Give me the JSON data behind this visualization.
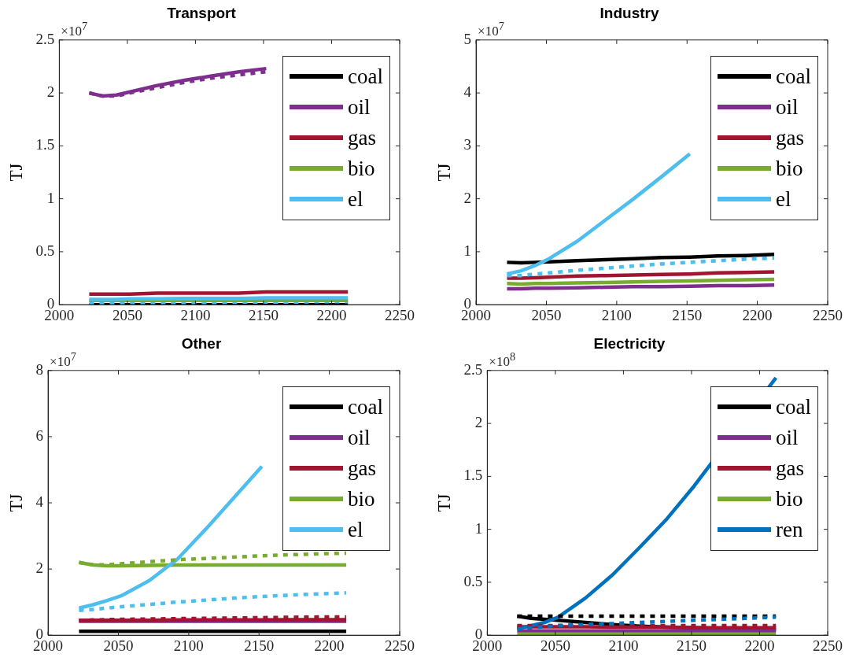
{
  "chart_data": [
    {
      "type": "line",
      "title": "Transport",
      "ylabel": "TJ",
      "annotations": [
        "×10$^{7}$"
      ],
      "legend": "top right",
      "grid": false,
      "marker": "none",
      "x": [
        2022,
        2032,
        2042,
        2052,
        2072,
        2092,
        2112,
        2132,
        2152,
        2172,
        2192,
        2212
      ],
      "xlim": [
        2000,
        2250
      ],
      "xticks": [
        2000,
        2050,
        2100,
        2150,
        2200,
        2250
      ],
      "ylim": [
        0,
        2.5
      ],
      "yticks": [
        0,
        0.5,
        1,
        1.5,
        2,
        2.5
      ],
      "series": [
        {
          "name": "coal",
          "color": "#000000",
          "line_style": "solid",
          "values": [
            0.0,
            0.0,
            0.0,
            0.0,
            0.0,
            0.0,
            0.0,
            0.0,
            0.0,
            0.0,
            0.0,
            0.0
          ]
        },
        {
          "name": "oil",
          "color": "#7e2f8e",
          "line_style": "solid",
          "values": [
            2.0,
            1.97,
            1.98,
            2.01,
            2.07,
            2.12,
            2.16,
            2.2,
            2.23,
            null,
            null,
            null
          ]
        },
        {
          "name": "gas",
          "color": "#a2142f",
          "line_style": "solid",
          "values": [
            0.1,
            0.1,
            0.1,
            0.1,
            0.11,
            0.11,
            0.11,
            0.11,
            0.12,
            0.12,
            0.12,
            0.12
          ]
        },
        {
          "color": "#4dbeee",
          "line_style": "dotted",
          "values": [
            0.015,
            0.015,
            0.015,
            0.02,
            0.02,
            0.02,
            0.02,
            0.025,
            0.025,
            0.025,
            0.03,
            0.03
          ]
        },
        {
          "name": "bio",
          "color": "#77ac30",
          "line_style": "solid",
          "values": [
            0.04,
            0.04,
            0.04,
            0.04,
            0.04,
            0.04,
            0.04,
            0.04,
            0.04,
            0.04,
            0.04,
            0.04
          ]
        },
        {
          "name": "el",
          "color": "#4dbeee",
          "line_style": "solid",
          "values": [
            0.05,
            0.05,
            0.05,
            0.055,
            0.055,
            0.06,
            0.06,
            0.06,
            0.065,
            0.065,
            0.065,
            0.065
          ]
        },
        {
          "color": "#7e2f8e",
          "line_style": "dotted",
          "values": [
            2.0,
            1.97,
            1.97,
            2.0,
            2.05,
            2.1,
            2.14,
            2.17,
            2.2,
            null,
            null,
            null
          ]
        }
      ]
    },
    {
      "type": "line",
      "title": "Industry",
      "ylabel": "TJ",
      "annotations": [
        "×10$^{7}$"
      ],
      "legend": "top right",
      "grid": false,
      "marker": "none",
      "x": [
        2022,
        2032,
        2042,
        2052,
        2072,
        2092,
        2112,
        2132,
        2152,
        2172,
        2192,
        2212
      ],
      "xlim": [
        2000,
        2250
      ],
      "xticks": [
        2000,
        2050,
        2100,
        2150,
        2200,
        2250
      ],
      "ylim": [
        0,
        5
      ],
      "yticks": [
        0,
        1,
        2,
        3,
        4,
        5
      ],
      "series": [
        {
          "name": "coal",
          "color": "#000000",
          "line_style": "solid",
          "values": [
            0.8,
            0.79,
            0.8,
            0.81,
            0.83,
            0.85,
            0.87,
            0.89,
            0.9,
            0.92,
            0.93,
            0.95
          ]
        },
        {
          "name": "oil",
          "color": "#7e2f8e",
          "line_style": "solid",
          "values": [
            0.3,
            0.3,
            0.31,
            0.31,
            0.32,
            0.33,
            0.34,
            0.34,
            0.35,
            0.36,
            0.36,
            0.37
          ]
        },
        {
          "name": "gas",
          "color": "#a2142f",
          "line_style": "solid",
          "values": [
            0.5,
            0.5,
            0.51,
            0.52,
            0.54,
            0.55,
            0.56,
            0.57,
            0.58,
            0.6,
            0.61,
            0.62
          ]
        },
        {
          "name": "bio",
          "color": "#77ac30",
          "line_style": "solid",
          "values": [
            0.4,
            0.39,
            0.4,
            0.4,
            0.41,
            0.42,
            0.43,
            0.44,
            0.45,
            0.46,
            0.47,
            0.48
          ]
        },
        {
          "name": "el",
          "color": "#4dbeee",
          "line_style": "solid",
          "values": [
            0.58,
            0.64,
            0.74,
            0.87,
            1.2,
            1.6,
            2.0,
            2.42,
            2.85,
            null,
            null,
            null
          ]
        },
        {
          "color": "#4dbeee",
          "line_style": "dotted",
          "values": [
            0.55,
            0.55,
            0.58,
            0.6,
            0.65,
            0.69,
            0.73,
            0.77,
            0.8,
            0.83,
            0.86,
            0.88
          ]
        }
      ]
    },
    {
      "type": "line",
      "title": "Other",
      "ylabel": "TJ",
      "annotations": [
        "×10$^{7}$"
      ],
      "legend": "top right",
      "grid": false,
      "marker": "none",
      "x": [
        2022,
        2032,
        2042,
        2052,
        2072,
        2092,
        2112,
        2132,
        2152,
        2172,
        2192,
        2212
      ],
      "xlim": [
        2000,
        2250
      ],
      "xticks": [
        2000,
        2050,
        2100,
        2150,
        2200,
        2250
      ],
      "ylim": [
        0,
        8
      ],
      "yticks": [
        0,
        2,
        4,
        6,
        8
      ],
      "series": [
        {
          "name": "coal",
          "color": "#000000",
          "line_style": "solid",
          "values": [
            0.12,
            0.12,
            0.12,
            0.12,
            0.12,
            0.12,
            0.12,
            0.12,
            0.12,
            0.12,
            0.12,
            0.12
          ]
        },
        {
          "name": "oil",
          "color": "#7e2f8e",
          "line_style": "solid",
          "values": [
            0.42,
            0.42,
            0.42,
            0.42,
            0.42,
            0.42,
            0.42,
            0.42,
            0.42,
            0.42,
            0.42,
            0.42
          ]
        },
        {
          "name": "gas",
          "color": "#a2142f",
          "line_style": "solid",
          "values": [
            0.45,
            0.45,
            0.45,
            0.45,
            0.45,
            0.46,
            0.46,
            0.46,
            0.46,
            0.47,
            0.47,
            0.47
          ]
        },
        {
          "name": "bio",
          "color": "#77ac30",
          "line_style": "solid",
          "values": [
            2.2,
            2.12,
            2.1,
            2.1,
            2.11,
            2.12,
            2.12,
            2.12,
            2.12,
            2.12,
            2.12,
            2.12
          ]
        },
        {
          "name": "el",
          "color": "#4dbeee",
          "line_style": "solid",
          "values": [
            0.82,
            0.92,
            1.05,
            1.19,
            1.65,
            2.3,
            3.2,
            4.15,
            5.1,
            null,
            null,
            null
          ]
        },
        {
          "color": "#a2142f",
          "line_style": "dotted",
          "values": [
            0.45,
            0.46,
            0.47,
            0.48,
            0.49,
            0.5,
            0.51,
            0.52,
            0.53,
            0.54,
            0.55,
            0.55
          ]
        },
        {
          "color": "#77ac30",
          "line_style": "dotted",
          "values": [
            2.2,
            2.13,
            2.13,
            2.16,
            2.22,
            2.28,
            2.32,
            2.36,
            2.4,
            2.43,
            2.46,
            2.48
          ]
        },
        {
          "color": "#4dbeee",
          "line_style": "dotted",
          "values": [
            0.75,
            0.78,
            0.82,
            0.86,
            0.93,
            1.0,
            1.06,
            1.12,
            1.17,
            1.21,
            1.25,
            1.28
          ]
        }
      ]
    },
    {
      "type": "line",
      "title": "Electricity",
      "ylabel": "TJ",
      "annotations": [
        "×10$^{8}$"
      ],
      "legend": "top right",
      "grid": false,
      "marker": "none",
      "x": [
        2022,
        2032,
        2042,
        2052,
        2072,
        2092,
        2112,
        2132,
        2152,
        2172,
        2192,
        2212
      ],
      "xlim": [
        2000,
        2250
      ],
      "xticks": [
        2000,
        2050,
        2100,
        2150,
        2200,
        2250
      ],
      "ylim": [
        0,
        2.5
      ],
      "yticks": [
        0,
        0.5,
        1,
        1.5,
        2,
        2.5
      ],
      "series": [
        {
          "name": "coal",
          "color": "#000000",
          "line_style": "solid",
          "values": [
            0.18,
            0.16,
            0.15,
            0.14,
            0.12,
            0.1,
            0.085,
            0.075,
            0.07,
            0.065,
            0.06,
            0.055
          ]
        },
        {
          "name": "oil",
          "color": "#7e2f8e",
          "line_style": "solid",
          "values": [
            0.04,
            0.04,
            0.04,
            0.04,
            0.04,
            0.04,
            0.04,
            0.04,
            0.04,
            0.04,
            0.04,
            0.04
          ]
        },
        {
          "name": "gas",
          "color": "#a2142f",
          "line_style": "solid",
          "values": [
            0.08,
            0.08,
            0.08,
            0.08,
            0.08,
            0.075,
            0.075,
            0.075,
            0.07,
            0.07,
            0.07,
            0.07
          ]
        },
        {
          "name": "bio",
          "color": "#77ac30",
          "line_style": "solid",
          "values": [
            0.01,
            0.01,
            0.01,
            0.01,
            0.01,
            0.01,
            0.01,
            0.01,
            0.01,
            0.01,
            0.01,
            0.01
          ]
        },
        {
          "name": "ren",
          "color": "#0072bd",
          "line_style": "solid",
          "values": [
            0.06,
            0.09,
            0.12,
            0.17,
            0.35,
            0.57,
            0.83,
            1.1,
            1.41,
            null,
            null,
            2.43
          ]
        },
        {
          "color": "#000000",
          "line_style": "dotted",
          "values": [
            0.18,
            0.18,
            0.18,
            0.18,
            0.18,
            0.18,
            0.18,
            0.18,
            0.18,
            0.18,
            0.18,
            0.18
          ]
        },
        {
          "color": "#a2142f",
          "line_style": "dotted",
          "values": [
            0.09,
            0.09,
            0.09,
            0.09,
            0.09,
            0.09,
            0.09,
            0.09,
            0.09,
            0.09,
            0.09,
            0.09
          ]
        },
        {
          "color": "#0072bd",
          "line_style": "dotted",
          "values": [
            0.06,
            0.07,
            0.08,
            0.09,
            0.1,
            0.11,
            0.12,
            0.13,
            0.14,
            0.15,
            0.16,
            0.17
          ]
        }
      ]
    }
  ]
}
